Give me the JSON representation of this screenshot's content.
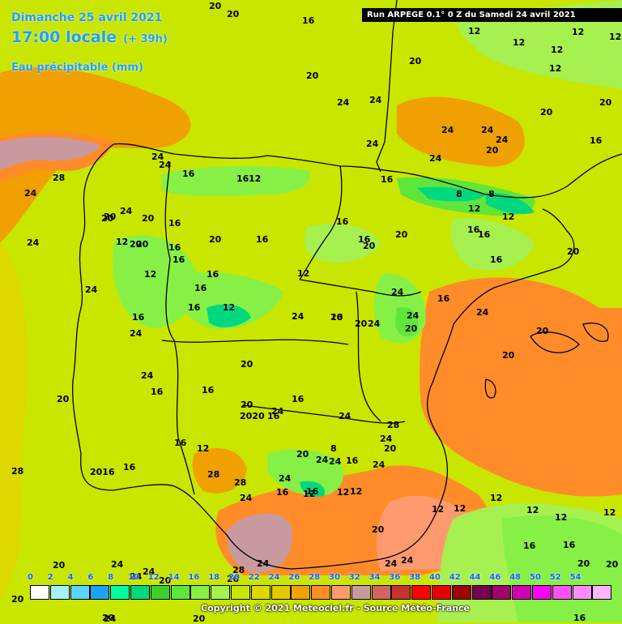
{
  "header": {
    "date_title": "Dimanche 25 avril 2021",
    "local_time": "17:00 locale",
    "lead": "(+ 39h)",
    "variable": "Eau précipitable (mm)",
    "run_info": "Run ARPEGE 0.1° 0 Z du Samedi 24 avril 2021"
  },
  "legend": {
    "ticks": [
      "0",
      "2",
      "4",
      "6",
      "8",
      "10",
      "12",
      "14",
      "16",
      "18",
      "20",
      "22",
      "24",
      "26",
      "28",
      "30",
      "32",
      "34",
      "36",
      "38",
      "40",
      "42",
      "44",
      "46",
      "48",
      "50",
      "52",
      "54"
    ],
    "colors": [
      "#ffffff",
      "#a6f0ff",
      "#5cd4ff",
      "#1ea0ff",
      "#00ffa0",
      "#00d880",
      "#3cd02c",
      "#5ee63a",
      "#86f046",
      "#a6f050",
      "#c8e600",
      "#dcd800",
      "#e6c800",
      "#f0a000",
      "#ff8c28",
      "#ff9a6e",
      "#c89aa0",
      "#d26464",
      "#c83232",
      "#ff0000",
      "#e60000",
      "#a00000",
      "#780050",
      "#a0006e",
      "#d200b4",
      "#ff00ff",
      "#ff50ff",
      "#ff8cff",
      "#ffb4ff"
    ]
  },
  "copyright": "Copyright © 2021 Meteociel.fr - Source Météo-France",
  "map_labels": [
    {
      "t": "20"
    },
    {
      "t": "20"
    },
    {
      "t": "16"
    },
    {
      "t": "20"
    },
    {
      "t": "12"
    },
    {
      "t": "12"
    },
    {
      "t": "12"
    },
    {
      "t": "12"
    },
    {
      "t": "12"
    },
    {
      "t": "12"
    },
    {
      "t": "20"
    },
    {
      "t": "20"
    },
    {
      "t": "20"
    },
    {
      "t": "24"
    },
    {
      "t": "24"
    },
    {
      "t": "24"
    },
    {
      "t": "24"
    },
    {
      "t": "24"
    },
    {
      "t": "20"
    },
    {
      "t": "16"
    },
    {
      "t": "24"
    },
    {
      "t": "24"
    },
    {
      "t": "24"
    },
    {
      "t": "24"
    },
    {
      "t": "24"
    },
    {
      "t": "16"
    },
    {
      "t": "24"
    },
    {
      "t": "28"
    },
    {
      "t": "24"
    },
    {
      "t": "20"
    },
    {
      "t": "16"
    },
    {
      "t": "16"
    },
    {
      "t": "12"
    },
    {
      "t": "8"
    },
    {
      "t": "8"
    },
    {
      "t": "12"
    },
    {
      "t": "12"
    },
    {
      "t": "16"
    },
    {
      "t": "16"
    },
    {
      "t": "20"
    },
    {
      "t": "16"
    },
    {
      "t": "16"
    },
    {
      "t": "20"
    },
    {
      "t": "20"
    },
    {
      "t": "16"
    },
    {
      "t": "16"
    },
    {
      "t": "20"
    },
    {
      "t": "20"
    },
    {
      "t": "20"
    },
    {
      "t": "20"
    },
    {
      "t": "16"
    },
    {
      "t": "16"
    },
    {
      "t": "12"
    },
    {
      "t": "12"
    },
    {
      "t": "16"
    },
    {
      "t": "24"
    },
    {
      "t": "20"
    },
    {
      "t": "16"
    },
    {
      "t": "12"
    },
    {
      "t": "16"
    },
    {
      "t": "12"
    },
    {
      "t": "16"
    },
    {
      "t": "16"
    },
    {
      "t": "24"
    },
    {
      "t": "24"
    },
    {
      "t": "24"
    },
    {
      "t": "20"
    },
    {
      "t": "20"
    },
    {
      "t": "16"
    },
    {
      "t": "20"
    },
    {
      "t": "20"
    },
    {
      "t": "20"
    },
    {
      "t": "24"
    },
    {
      "t": "24"
    },
    {
      "t": "20"
    },
    {
      "t": "16"
    },
    {
      "t": "24"
    },
    {
      "t": "24"
    },
    {
      "t": "16"
    },
    {
      "t": "20"
    },
    {
      "t": "16"
    },
    {
      "t": "20"
    },
    {
      "t": "16"
    },
    {
      "t": "2020"
    },
    {
      "t": "16"
    },
    {
      "t": "24"
    },
    {
      "t": "24"
    },
    {
      "t": "28"
    },
    {
      "t": "24"
    },
    {
      "t": "20"
    },
    {
      "t": "16"
    },
    {
      "t": "12"
    },
    {
      "t": "16"
    },
    {
      "t": "2016"
    },
    {
      "t": "8"
    },
    {
      "t": "20"
    },
    {
      "t": "16"
    },
    {
      "t": "24"
    },
    {
      "t": "24"
    },
    {
      "t": "28"
    },
    {
      "t": "28"
    },
    {
      "t": "28"
    },
    {
      "t": "24"
    },
    {
      "t": "24"
    },
    {
      "t": "24"
    },
    {
      "t": "16"
    },
    {
      "t": "16"
    },
    {
      "t": "12"
    },
    {
      "t": "12"
    },
    {
      "t": "12"
    },
    {
      "t": "12"
    },
    {
      "t": "12"
    },
    {
      "t": "12"
    },
    {
      "t": "12"
    },
    {
      "t": "12"
    },
    {
      "t": "12"
    },
    {
      "t": "16"
    },
    {
      "t": "16"
    },
    {
      "t": "20"
    },
    {
      "t": "20"
    },
    {
      "t": "20"
    },
    {
      "t": "24"
    },
    {
      "t": "24"
    },
    {
      "t": "24"
    },
    {
      "t": "20"
    },
    {
      "t": "24"
    },
    {
      "t": "20"
    },
    {
      "t": "20"
    },
    {
      "t": "24"
    },
    {
      "t": "24"
    },
    {
      "t": "28"
    },
    {
      "t": "20"
    },
    {
      "t": "20"
    },
    {
      "t": "20"
    },
    {
      "t": "16"
    },
    {
      "t": "24"
    }
  ]
}
